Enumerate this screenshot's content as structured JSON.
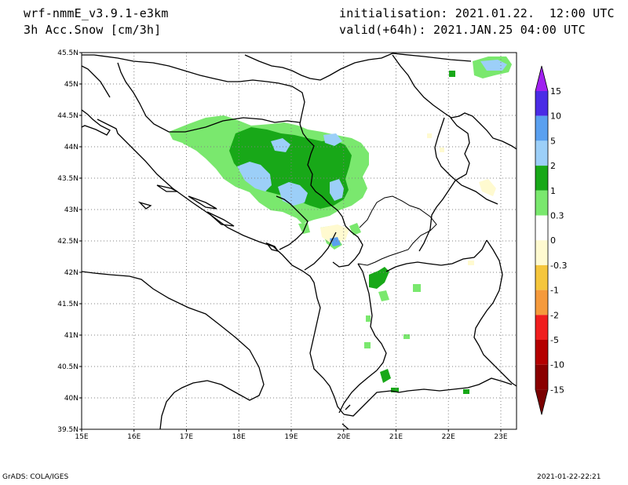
{
  "header": {
    "model": "wrf-nmmE_v3.9.1-e3km",
    "variable": "3h Acc.Snow [cm/3h]",
    "init": "initialisation: 2021.01.22.  12:00 UTC",
    "valid": "valid(+64h): 2021.JAN.25 04:00 UTC"
  },
  "map": {
    "lat_labels": [
      "45.5N",
      "45N",
      "44.5N",
      "44N",
      "43.5N",
      "43N",
      "42.5N",
      "42N",
      "41.5N",
      "41N",
      "40.5N",
      "40N",
      "39.5N"
    ],
    "lon_labels": [
      "15E",
      "16E",
      "17E",
      "18E",
      "19E",
      "20E",
      "21E",
      "22E",
      "23E"
    ],
    "lat_values": [
      45.5,
      45,
      44.5,
      44,
      43.5,
      43,
      42.5,
      42,
      41.5,
      41,
      40.5,
      40,
      39.5
    ],
    "lon_values": [
      15,
      16,
      17,
      18,
      19,
      20,
      21,
      22,
      23
    ],
    "lon_range": [
      15,
      23.3
    ],
    "lat_range": [
      39.5,
      45.5
    ],
    "grid": "dotted"
  },
  "colorbar": {
    "labels": [
      "15",
      "10",
      "5",
      "2",
      "1",
      "0.3",
      "0",
      "-0.3",
      "-1",
      "-2",
      "-5",
      "-10",
      "-15"
    ],
    "colors": [
      "#4a2ce6",
      "#5aa0f0",
      "#9ccff8",
      "#18a818",
      "#7ae86e",
      "#ffffff",
      "#fffad0",
      "#f5c63c",
      "#f59a3c",
      "#f01e1e",
      "#b40000",
      "#8a0000"
    ],
    "top_arrow_color": "#a020f0",
    "bottom_arrow_color": "#7a0000"
  },
  "footer": {
    "left": "GrADS: COLA/IGES",
    "right": "2021-01-22-22:21"
  }
}
